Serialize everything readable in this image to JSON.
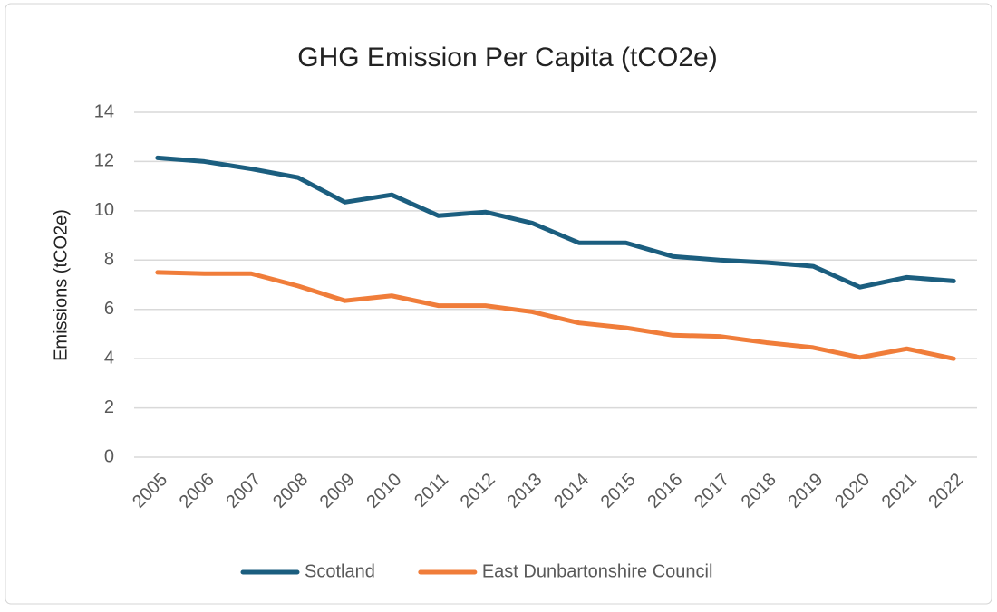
{
  "chart_data": {
    "type": "line",
    "title": "GHG Emission Per Capita (tCO2e)",
    "y_label": "Emissions (tCO2e)",
    "categories": [
      "2005",
      "2006",
      "2007",
      "2008",
      "2009",
      "2010",
      "2011",
      "2012",
      "2013",
      "2014",
      "2015",
      "2016",
      "2017",
      "2018",
      "2019",
      "2020",
      "2021",
      "2022"
    ],
    "series": [
      {
        "name": "Scotland",
        "color": "#1b5e7f",
        "values": [
          12.15,
          12.0,
          11.7,
          11.35,
          10.35,
          10.65,
          9.8,
          9.95,
          9.5,
          8.7,
          8.7,
          8.15,
          8.0,
          7.9,
          7.75,
          6.9,
          7.3,
          7.15
        ]
      },
      {
        "name": "East Dunbartonshire Council",
        "color": "#f07d3a",
        "values": [
          7.5,
          7.45,
          7.45,
          6.95,
          6.35,
          6.55,
          6.15,
          6.15,
          5.9,
          5.45,
          5.25,
          4.95,
          4.9,
          4.65,
          4.45,
          4.05,
          4.4,
          4.0
        ]
      }
    ],
    "ylim": [
      0,
      14
    ],
    "yticks": [
      0,
      2,
      4,
      6,
      8,
      10,
      12,
      14
    ],
    "grid": true,
    "legend": "bottom"
  }
}
